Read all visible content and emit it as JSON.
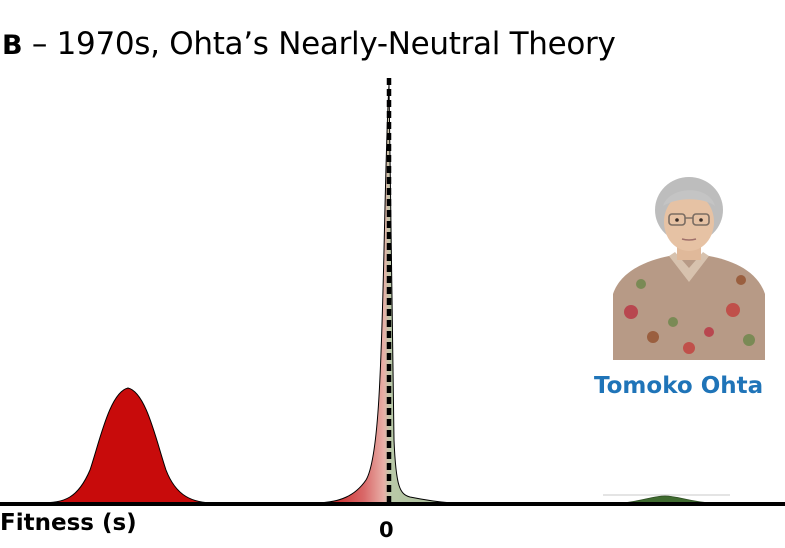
{
  "title": {
    "panel_letter": "B",
    "text": "– 1970s, Ohta’s Nearly-Neutral Theory"
  },
  "axis": {
    "x_label": "Fitness (s)",
    "zero_label": "0"
  },
  "portrait": {
    "caption": "Tomoko Ohta"
  },
  "colors": {
    "deleterious": "#c80b0b",
    "nearly_neutral_left": "#d96a6a",
    "nearly_neutral_right": "#a8bd97",
    "beneficial": "#3f6b2f",
    "caption": "#1f74b8",
    "axis": "#000000"
  }
}
